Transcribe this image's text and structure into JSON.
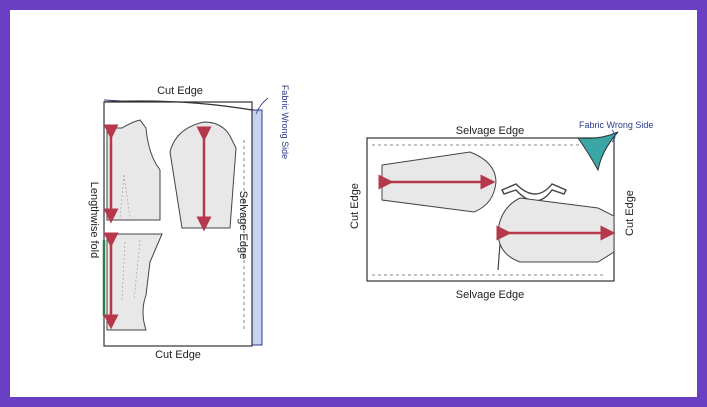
{
  "left_diagram": {
    "top_label": "Cut Edge",
    "bottom_label": "Cut Edge",
    "fold_label": "Lengthwise fold",
    "selvage_label": "Selvage Edge",
    "wrong_side_label": "Fabric Wrong Side"
  },
  "right_diagram": {
    "top_label": "Selvage Edge",
    "bottom_label": "Selvage Edge",
    "left_label": "Cut Edge",
    "right_label": "Cut Edge",
    "wrong_side_label": "Fabric Wrong Side"
  },
  "colors": {
    "frame": "#6a3fc4",
    "fabric_back": "#c9d3f0",
    "piece_fill": "#e8e8e8",
    "grain_arrow": "#b5384b",
    "wrong_side_fill": "#3aa6a6",
    "fold_line": "#2f7d44"
  }
}
